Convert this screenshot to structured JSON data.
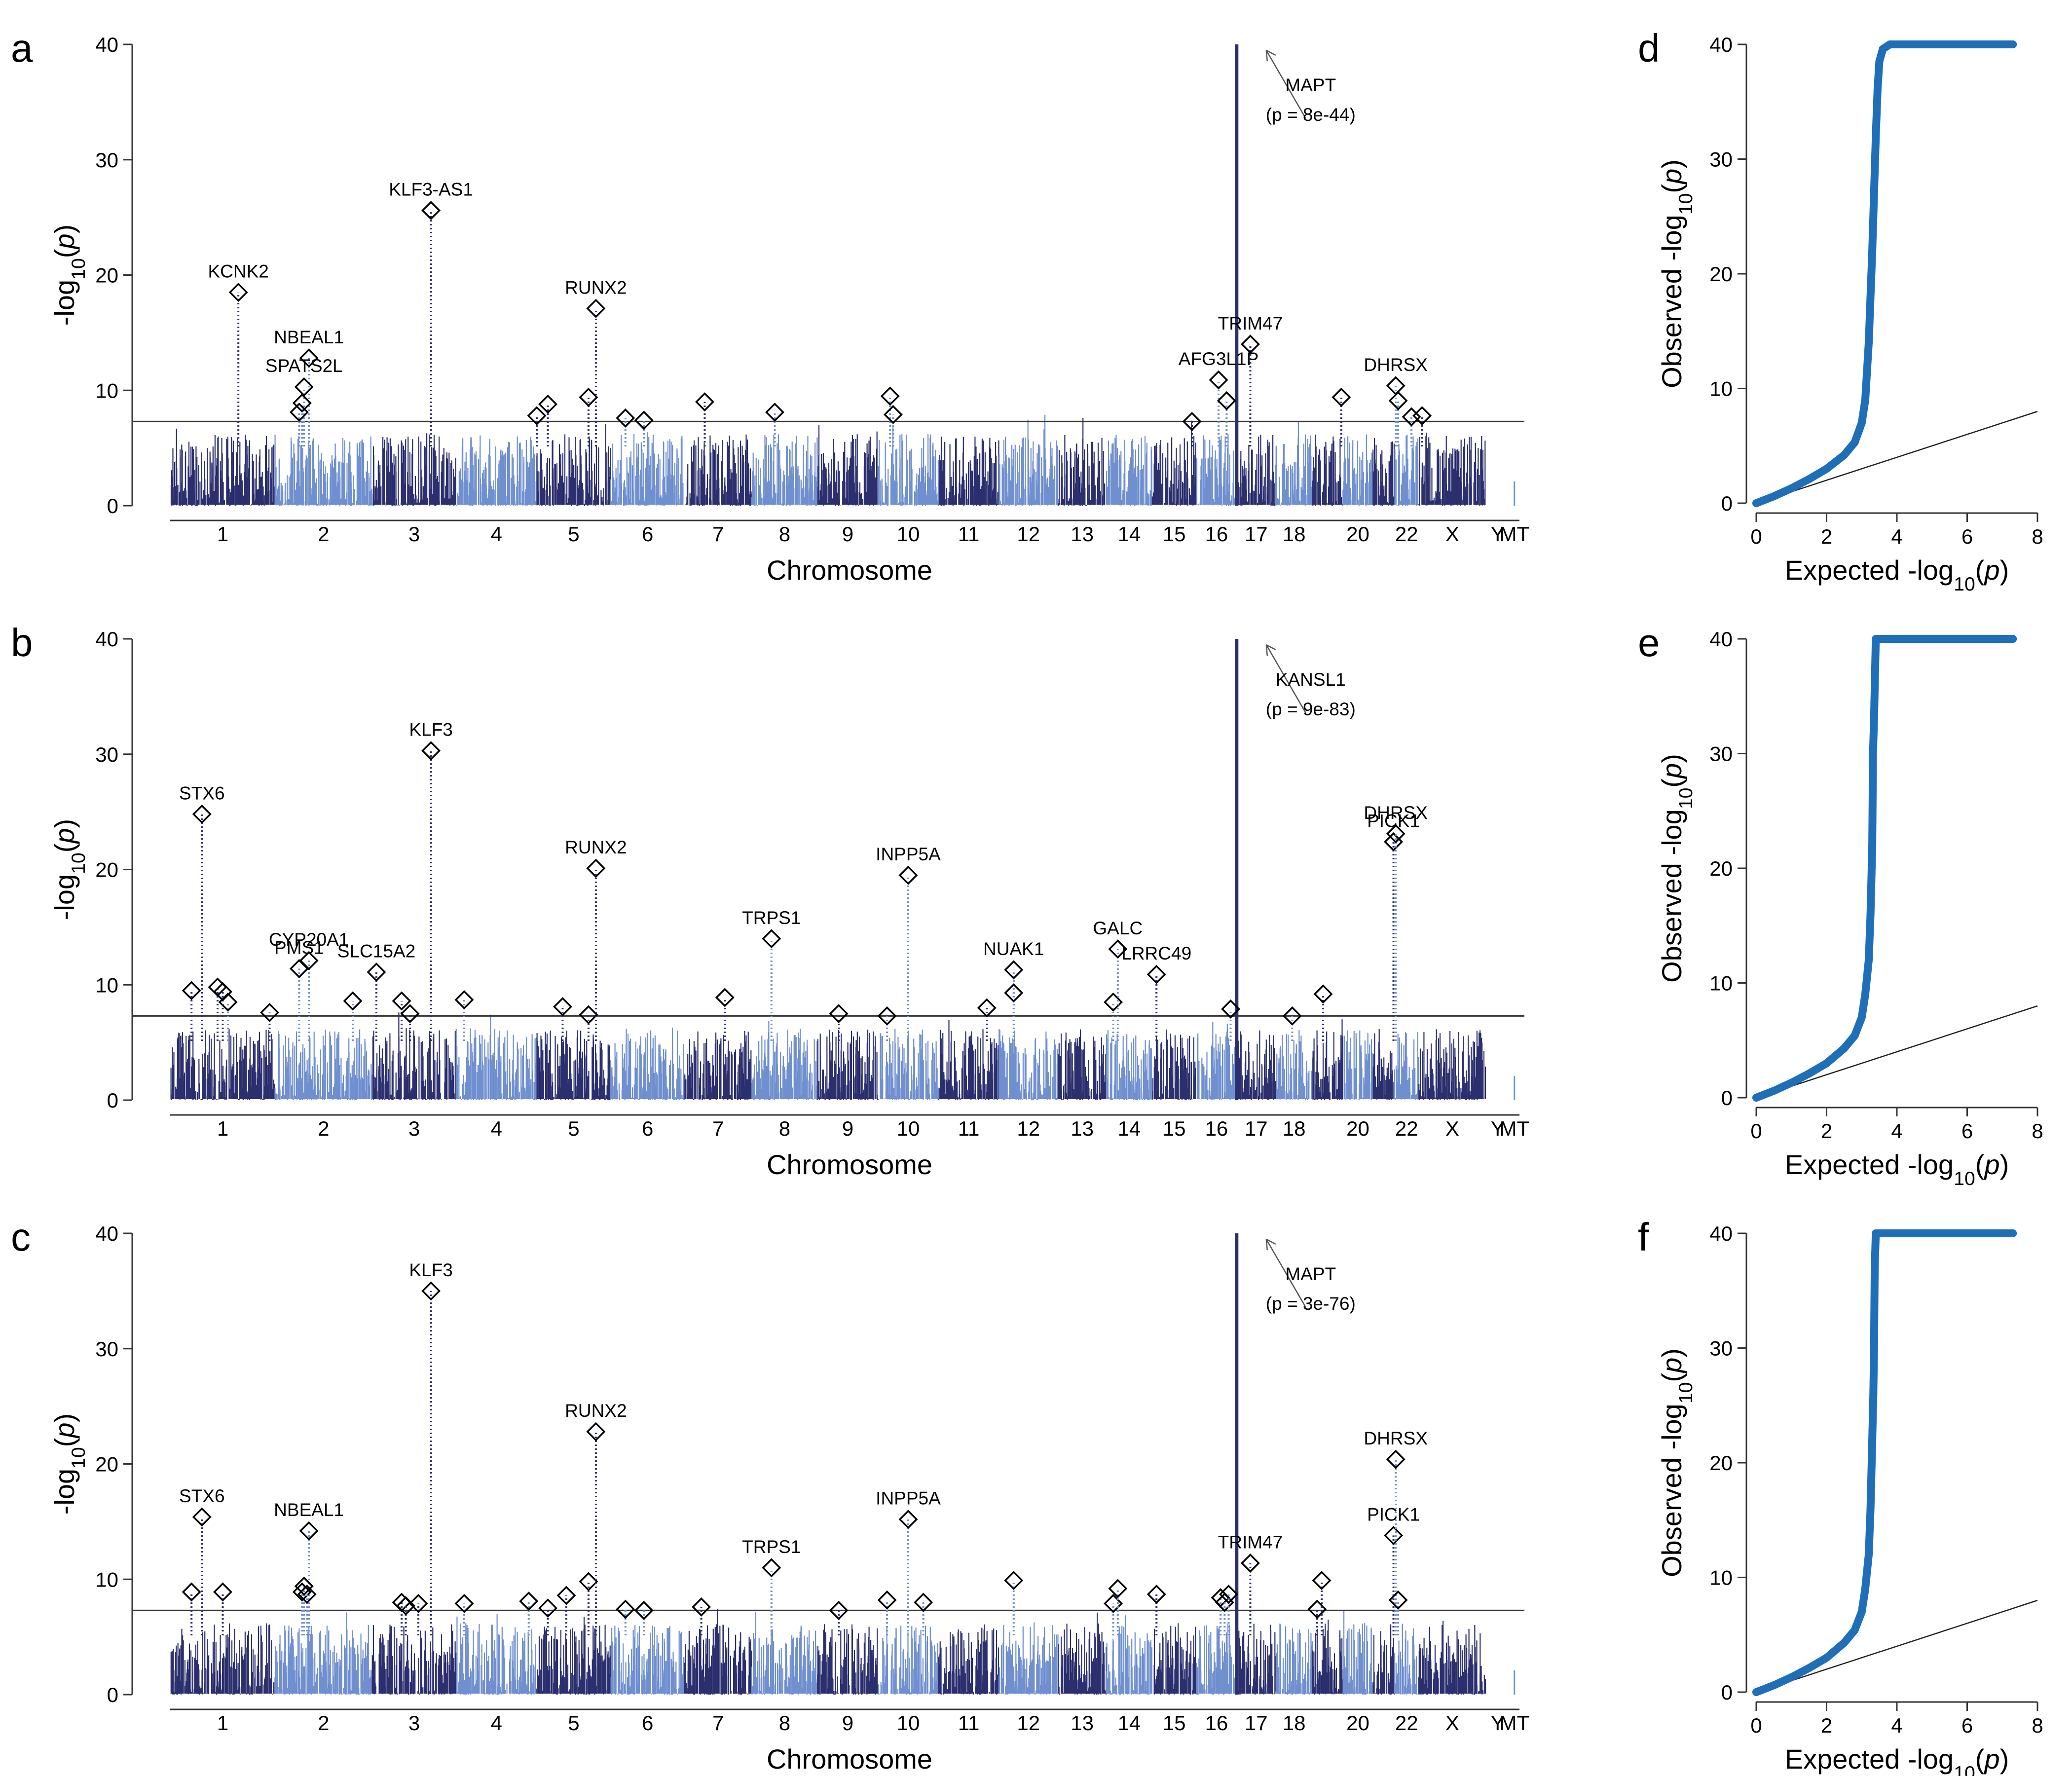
{
  "chart_data": [
    {
      "panel": "a",
      "type": "scatter",
      "xlabel": "Chromosome",
      "ylabel": "-log10(p)",
      "ylim": [
        0,
        40
      ],
      "yticks": [
        0,
        10,
        20,
        30,
        40
      ],
      "categories": [
        "1",
        "2",
        "3",
        "4",
        "5",
        "6",
        "7",
        "8",
        "9",
        "10",
        "11",
        "12",
        "13",
        "14",
        "15",
        "16",
        "17",
        "18",
        "20",
        "22",
        "X",
        "Y",
        "MT"
      ],
      "significance_threshold": 7.3,
      "colors": {
        "dark": "#2b2f6e",
        "light": "#6f8fcf"
      },
      "peaks": [
        {
          "label": "KCNK2",
          "x": 1.65,
          "y": 18.5
        },
        {
          "label": "NBEAL1",
          "x": 2.35,
          "y": 12.8
        },
        {
          "label": "SPATS2L",
          "x": 2.3,
          "y": 10.3
        },
        {
          "label": "",
          "x": 2.28,
          "y": 8.9
        },
        {
          "label": "",
          "x": 2.25,
          "y": 8.1
        },
        {
          "label": "KLF3-AS1",
          "x": 3.7,
          "y": 25.6
        },
        {
          "label": "",
          "x": 5.0,
          "y": 7.8
        },
        {
          "label": "",
          "x": 5.15,
          "y": 8.8
        },
        {
          "label": "RUNX2",
          "x": 5.8,
          "y": 17.1
        },
        {
          "label": "",
          "x": 5.7,
          "y": 9.4
        },
        {
          "label": "",
          "x": 6.2,
          "y": 7.6
        },
        {
          "label": "",
          "x": 6.45,
          "y": 7.4
        },
        {
          "label": "",
          "x": 7.3,
          "y": 9.0
        },
        {
          "label": "",
          "x": 8.35,
          "y": 8.1
        },
        {
          "label": "",
          "x": 10.2,
          "y": 9.5
        },
        {
          "label": "",
          "x": 10.25,
          "y": 7.9
        },
        {
          "label": "",
          "x": 15.9,
          "y": 7.3
        },
        {
          "label": "AFG3L1P",
          "x": 16.55,
          "y": 10.9
        },
        {
          "label": "",
          "x": 16.75,
          "y": 9.1
        },
        {
          "label": "TRIM47",
          "x": 17.35,
          "y": 14.0
        },
        {
          "label": "",
          "x": 19.95,
          "y": 9.4
        },
        {
          "label": "DHRSX",
          "x": 22.05,
          "y": 10.4
        },
        {
          "label": "",
          "x": 22.15,
          "y": 9.1
        },
        {
          "label": "",
          "x": 22.7,
          "y": 7.7
        },
        {
          "label": "",
          "x": 23.05,
          "y": 7.8
        }
      ],
      "top_hit": {
        "gene": "MAPT",
        "p": "(p = 8e-44)",
        "x": 17.0,
        "y": 40
      }
    },
    {
      "panel": "b",
      "type": "scatter",
      "xlabel": "Chromosome",
      "ylabel": "-log10(p)",
      "ylim": [
        0,
        40
      ],
      "yticks": [
        0,
        10,
        20,
        30,
        40
      ],
      "categories": [
        "1",
        "2",
        "3",
        "4",
        "5",
        "6",
        "7",
        "8",
        "9",
        "10",
        "11",
        "12",
        "13",
        "14",
        "15",
        "16",
        "17",
        "18",
        "20",
        "22",
        "X",
        "Y",
        "MT"
      ],
      "significance_threshold": 7.3,
      "colors": {
        "dark": "#2b2f6e",
        "light": "#6f8fcf"
      },
      "peaks": [
        {
          "label": "",
          "x": 0.55,
          "y": 8.5
        },
        {
          "label": "",
          "x": 1.2,
          "y": 9.5
        },
        {
          "label": "STX6",
          "x": 1.3,
          "y": 24.8
        },
        {
          "label": "",
          "x": 1.45,
          "y": 9.8
        },
        {
          "label": "",
          "x": 1.5,
          "y": 9.4
        },
        {
          "label": "",
          "x": 1.95,
          "y": 7.6
        },
        {
          "label": "PMS1",
          "x": 2.25,
          "y": 11.4
        },
        {
          "label": "CYP20A1",
          "x": 2.35,
          "y": 12.1
        },
        {
          "label": "",
          "x": 2.8,
          "y": 8.6
        },
        {
          "label": "SLC15A2",
          "x": 3.05,
          "y": 11.1
        },
        {
          "label": "",
          "x": 3.35,
          "y": 8.6
        },
        {
          "label": "",
          "x": 3.45,
          "y": 7.5
        },
        {
          "label": "KLF3",
          "x": 3.7,
          "y": 30.3
        },
        {
          "label": "",
          "x": 4.1,
          "y": 8.7
        },
        {
          "label": "",
          "x": 5.35,
          "y": 8.1
        },
        {
          "label": "",
          "x": 5.7,
          "y": 7.4
        },
        {
          "label": "RUNX2",
          "x": 5.8,
          "y": 20.1
        },
        {
          "label": "",
          "x": 7.6,
          "y": 8.9
        },
        {
          "label": "TRPS1",
          "x": 8.3,
          "y": 14.0
        },
        {
          "label": "",
          "x": 9.35,
          "y": 7.5
        },
        {
          "label": "",
          "x": 10.15,
          "y": 7.3
        },
        {
          "label": "INPP5A",
          "x": 10.5,
          "y": 19.5
        },
        {
          "label": "",
          "x": 11.8,
          "y": 8.0
        },
        {
          "label": "NUAK1",
          "x": 12.25,
          "y": 11.3
        },
        {
          "label": "",
          "x": 12.25,
          "y": 9.3
        },
        {
          "label": "",
          "x": 14.15,
          "y": 8.5
        },
        {
          "label": "GALC",
          "x": 14.25,
          "y": 13.1
        },
        {
          "label": "LRRC49",
          "x": 15.1,
          "y": 10.9
        },
        {
          "label": "",
          "x": 16.85,
          "y": 7.9
        },
        {
          "label": "",
          "x": 18.45,
          "y": 7.3
        },
        {
          "label": "",
          "x": 19.35,
          "y": 9.2
        },
        {
          "label": "PICK1",
          "x": 21.95,
          "y": 22.4
        },
        {
          "label": "DHRSX",
          "x": 22.05,
          "y": 23.1
        }
      ],
      "top_hit": {
        "gene": "KANSL1",
        "p": "(p = 9e-83)",
        "x": 17.0,
        "y": 40
      }
    },
    {
      "panel": "c",
      "type": "scatter",
      "xlabel": "Chromosome",
      "ylabel": "-log10(p)",
      "ylim": [
        0,
        40
      ],
      "yticks": [
        0,
        10,
        20,
        30,
        40
      ],
      "categories": [
        "1",
        "2",
        "3",
        "4",
        "5",
        "6",
        "7",
        "8",
        "9",
        "10",
        "11",
        "12",
        "13",
        "14",
        "15",
        "16",
        "17",
        "18",
        "20",
        "22",
        "X",
        "Y",
        "MT"
      ],
      "significance_threshold": 7.3,
      "colors": {
        "dark": "#2b2f6e",
        "light": "#6f8fcf"
      },
      "peaks": [
        {
          "label": "",
          "x": 1.2,
          "y": 8.9
        },
        {
          "label": "STX6",
          "x": 1.3,
          "y": 15.4
        },
        {
          "label": "",
          "x": 1.5,
          "y": 8.9
        },
        {
          "label": "NBEAL1",
          "x": 2.35,
          "y": 14.2
        },
        {
          "label": "",
          "x": 2.3,
          "y": 9.4
        },
        {
          "label": "",
          "x": 2.28,
          "y": 8.9
        },
        {
          "label": "",
          "x": 2.33,
          "y": 8.7
        },
        {
          "label": "",
          "x": 3.35,
          "y": 8.0
        },
        {
          "label": "",
          "x": 3.4,
          "y": 7.7
        },
        {
          "label": "",
          "x": 3.55,
          "y": 7.9
        },
        {
          "label": "KLF3",
          "x": 3.7,
          "y": 35.0
        },
        {
          "label": "",
          "x": 4.1,
          "y": 7.9
        },
        {
          "label": "",
          "x": 4.9,
          "y": 8.1
        },
        {
          "label": "",
          "x": 5.15,
          "y": 7.5
        },
        {
          "label": "",
          "x": 5.4,
          "y": 8.6
        },
        {
          "label": "",
          "x": 5.7,
          "y": 9.8
        },
        {
          "label": "RUNX2",
          "x": 5.8,
          "y": 22.8
        },
        {
          "label": "",
          "x": 6.2,
          "y": 7.4
        },
        {
          "label": "",
          "x": 6.45,
          "y": 7.3
        },
        {
          "label": "",
          "x": 7.25,
          "y": 7.6
        },
        {
          "label": "TRPS1",
          "x": 8.3,
          "y": 11.0
        },
        {
          "label": "",
          "x": 9.35,
          "y": 7.3
        },
        {
          "label": "",
          "x": 10.15,
          "y": 8.2
        },
        {
          "label": "INPP5A",
          "x": 10.5,
          "y": 15.2
        },
        {
          "label": "",
          "x": 10.75,
          "y": 8.0
        },
        {
          "label": "",
          "x": 12.25,
          "y": 9.9
        },
        {
          "label": "",
          "x": 14.15,
          "y": 7.9
        },
        {
          "label": "",
          "x": 14.25,
          "y": 9.2
        },
        {
          "label": "",
          "x": 15.1,
          "y": 8.7
        },
        {
          "label": "",
          "x": 16.6,
          "y": 8.4
        },
        {
          "label": "",
          "x": 16.7,
          "y": 8.0
        },
        {
          "label": "",
          "x": 16.8,
          "y": 8.7
        },
        {
          "label": "TRIM47",
          "x": 17.35,
          "y": 11.4
        },
        {
          "label": "",
          "x": 19.15,
          "y": 7.4
        },
        {
          "label": "",
          "x": 19.3,
          "y": 9.9
        },
        {
          "label": "PICK1",
          "x": 21.95,
          "y": 13.8
        },
        {
          "label": "DHRSX",
          "x": 22.05,
          "y": 20.4
        },
        {
          "label": "",
          "x": 22.15,
          "y": 8.2
        }
      ],
      "top_hit": {
        "gene": "MAPT",
        "p": "(p = 3e-76)",
        "x": 17.0,
        "y": 40
      }
    },
    {
      "panel": "d",
      "type": "scatter",
      "xlabel": "Expected -log10(p)",
      "ylabel": "Observed -log10(p)",
      "xlim": [
        0,
        8
      ],
      "ylim": [
        0,
        40
      ],
      "xticks": [
        0,
        2,
        4,
        6,
        8
      ],
      "yticks": [
        0,
        10,
        20,
        30,
        40
      ],
      "color": "#1f6fb8",
      "x": [
        0,
        0.5,
        1.0,
        1.5,
        2.0,
        2.5,
        2.8,
        3.0,
        3.1,
        3.2,
        3.3,
        3.4,
        3.45,
        3.5,
        3.6,
        3.8,
        4.2,
        5.0,
        6.0,
        6.5,
        7.0,
        7.3
      ],
      "y": [
        0,
        0.6,
        1.3,
        2.1,
        3.0,
        4.2,
        5.3,
        7.0,
        9.0,
        14.0,
        22.0,
        32.0,
        36.0,
        38.5,
        39.6,
        40,
        40,
        40,
        40,
        40,
        40,
        40
      ]
    },
    {
      "panel": "e",
      "type": "scatter",
      "xlabel": "Expected -log10(p)",
      "ylabel": "Observed -log10(p)",
      "xlim": [
        0,
        8
      ],
      "ylim": [
        0,
        40
      ],
      "xticks": [
        0,
        2,
        4,
        6,
        8
      ],
      "yticks": [
        0,
        10,
        20,
        30,
        40
      ],
      "color": "#1f6fb8",
      "x": [
        0,
        0.5,
        1.0,
        1.5,
        2.0,
        2.5,
        2.8,
        3.0,
        3.1,
        3.2,
        3.25,
        3.3,
        3.32,
        3.35,
        3.4,
        3.6,
        4.0,
        5.0,
        6.0,
        6.8,
        7.3
      ],
      "y": [
        0,
        0.6,
        1.3,
        2.1,
        3.0,
        4.3,
        5.4,
        7.0,
        9.0,
        12.0,
        16.0,
        22.0,
        30.0,
        33.0,
        40,
        40,
        40,
        40,
        40,
        40,
        40
      ]
    },
    {
      "panel": "f",
      "type": "scatter",
      "xlabel": "Expected -log10(p)",
      "ylabel": "Observed -log10(p)",
      "xlim": [
        0,
        8
      ],
      "ylim": [
        0,
        40
      ],
      "xticks": [
        0,
        2,
        4,
        6,
        8
      ],
      "yticks": [
        0,
        10,
        20,
        30,
        40
      ],
      "color": "#1f6fb8",
      "x": [
        0,
        0.5,
        1.0,
        1.5,
        2.0,
        2.5,
        2.8,
        3.0,
        3.1,
        3.2,
        3.25,
        3.3,
        3.33,
        3.35,
        3.37,
        3.4,
        3.6,
        4.0,
        5.0,
        6.0,
        6.8,
        7.3
      ],
      "y": [
        0,
        0.6,
        1.3,
        2.1,
        3.0,
        4.3,
        5.4,
        7.0,
        9.0,
        12.0,
        16.0,
        22.0,
        26.0,
        30.0,
        37.0,
        40,
        40,
        40,
        40,
        40,
        40,
        40
      ]
    }
  ]
}
